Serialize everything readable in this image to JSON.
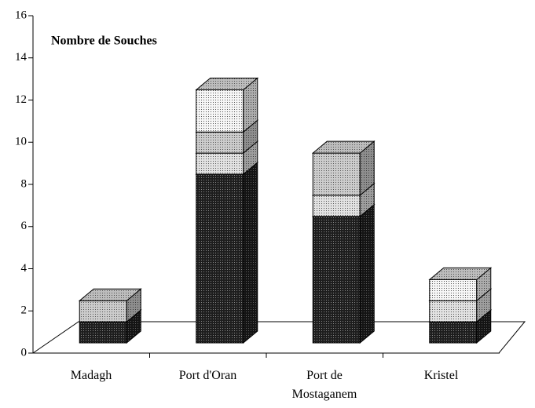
{
  "chart_data": {
    "type": "bar3d_stacked",
    "title": "Nombre de Souches",
    "categories": [
      "Madagh",
      "Port d'Oran",
      "Port de\nMostaganem",
      "Kristel"
    ],
    "series": [
      {
        "color": "#1e1e1e",
        "values": [
          1,
          8,
          6,
          1
        ]
      },
      {
        "color": "#e2e2e2",
        "values": [
          0,
          1,
          1,
          1
        ]
      },
      {
        "color": "#cccccc",
        "values": [
          1,
          1,
          2,
          0
        ]
      },
      {
        "color": "#f6f6f6",
        "values": [
          0,
          2,
          0,
          1
        ]
      }
    ],
    "ylim": [
      0,
      16
    ],
    "yticks": [
      0,
      2,
      4,
      6,
      8,
      10,
      12,
      14,
      16
    ]
  }
}
